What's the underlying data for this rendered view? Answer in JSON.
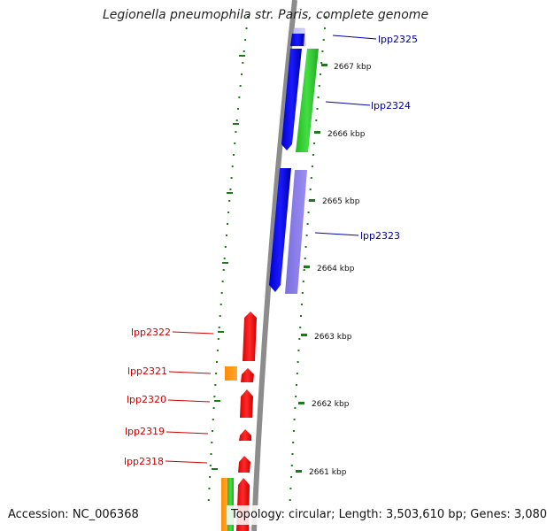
{
  "header": {
    "title": "Legionella pneumophila str. Paris, complete genome"
  },
  "footer": {
    "accession_label": "Accession: NC_006368",
    "summary_label": "Topology: circular; Length: 3,503,610 bp; Genes: 3,080"
  },
  "colors": {
    "backbone": "#8c8c8c",
    "forward_gene": "#0000ee",
    "reverse_gene_red": "#ee0000",
    "ruler": "#1a7a1a",
    "label_forward": "#00009a",
    "label_reverse": "#cc0000"
  },
  "ticks": [
    {
      "label": "2667 kbp"
    },
    {
      "label": "2666 kbp"
    },
    {
      "label": "2665 kbp"
    },
    {
      "label": "2664 kbp"
    },
    {
      "label": "2663 kbp"
    },
    {
      "label": "2662 kbp"
    },
    {
      "label": "2661 kbp"
    }
  ],
  "genes_forward": [
    {
      "name": "lpp2325"
    },
    {
      "name": "lpp2324"
    },
    {
      "name": "lpp2323"
    }
  ],
  "genes_reverse": [
    {
      "name": "lpp2322"
    },
    {
      "name": "lpp2321"
    },
    {
      "name": "lpp2320"
    },
    {
      "name": "lpp2319"
    },
    {
      "name": "lpp2318"
    }
  ]
}
